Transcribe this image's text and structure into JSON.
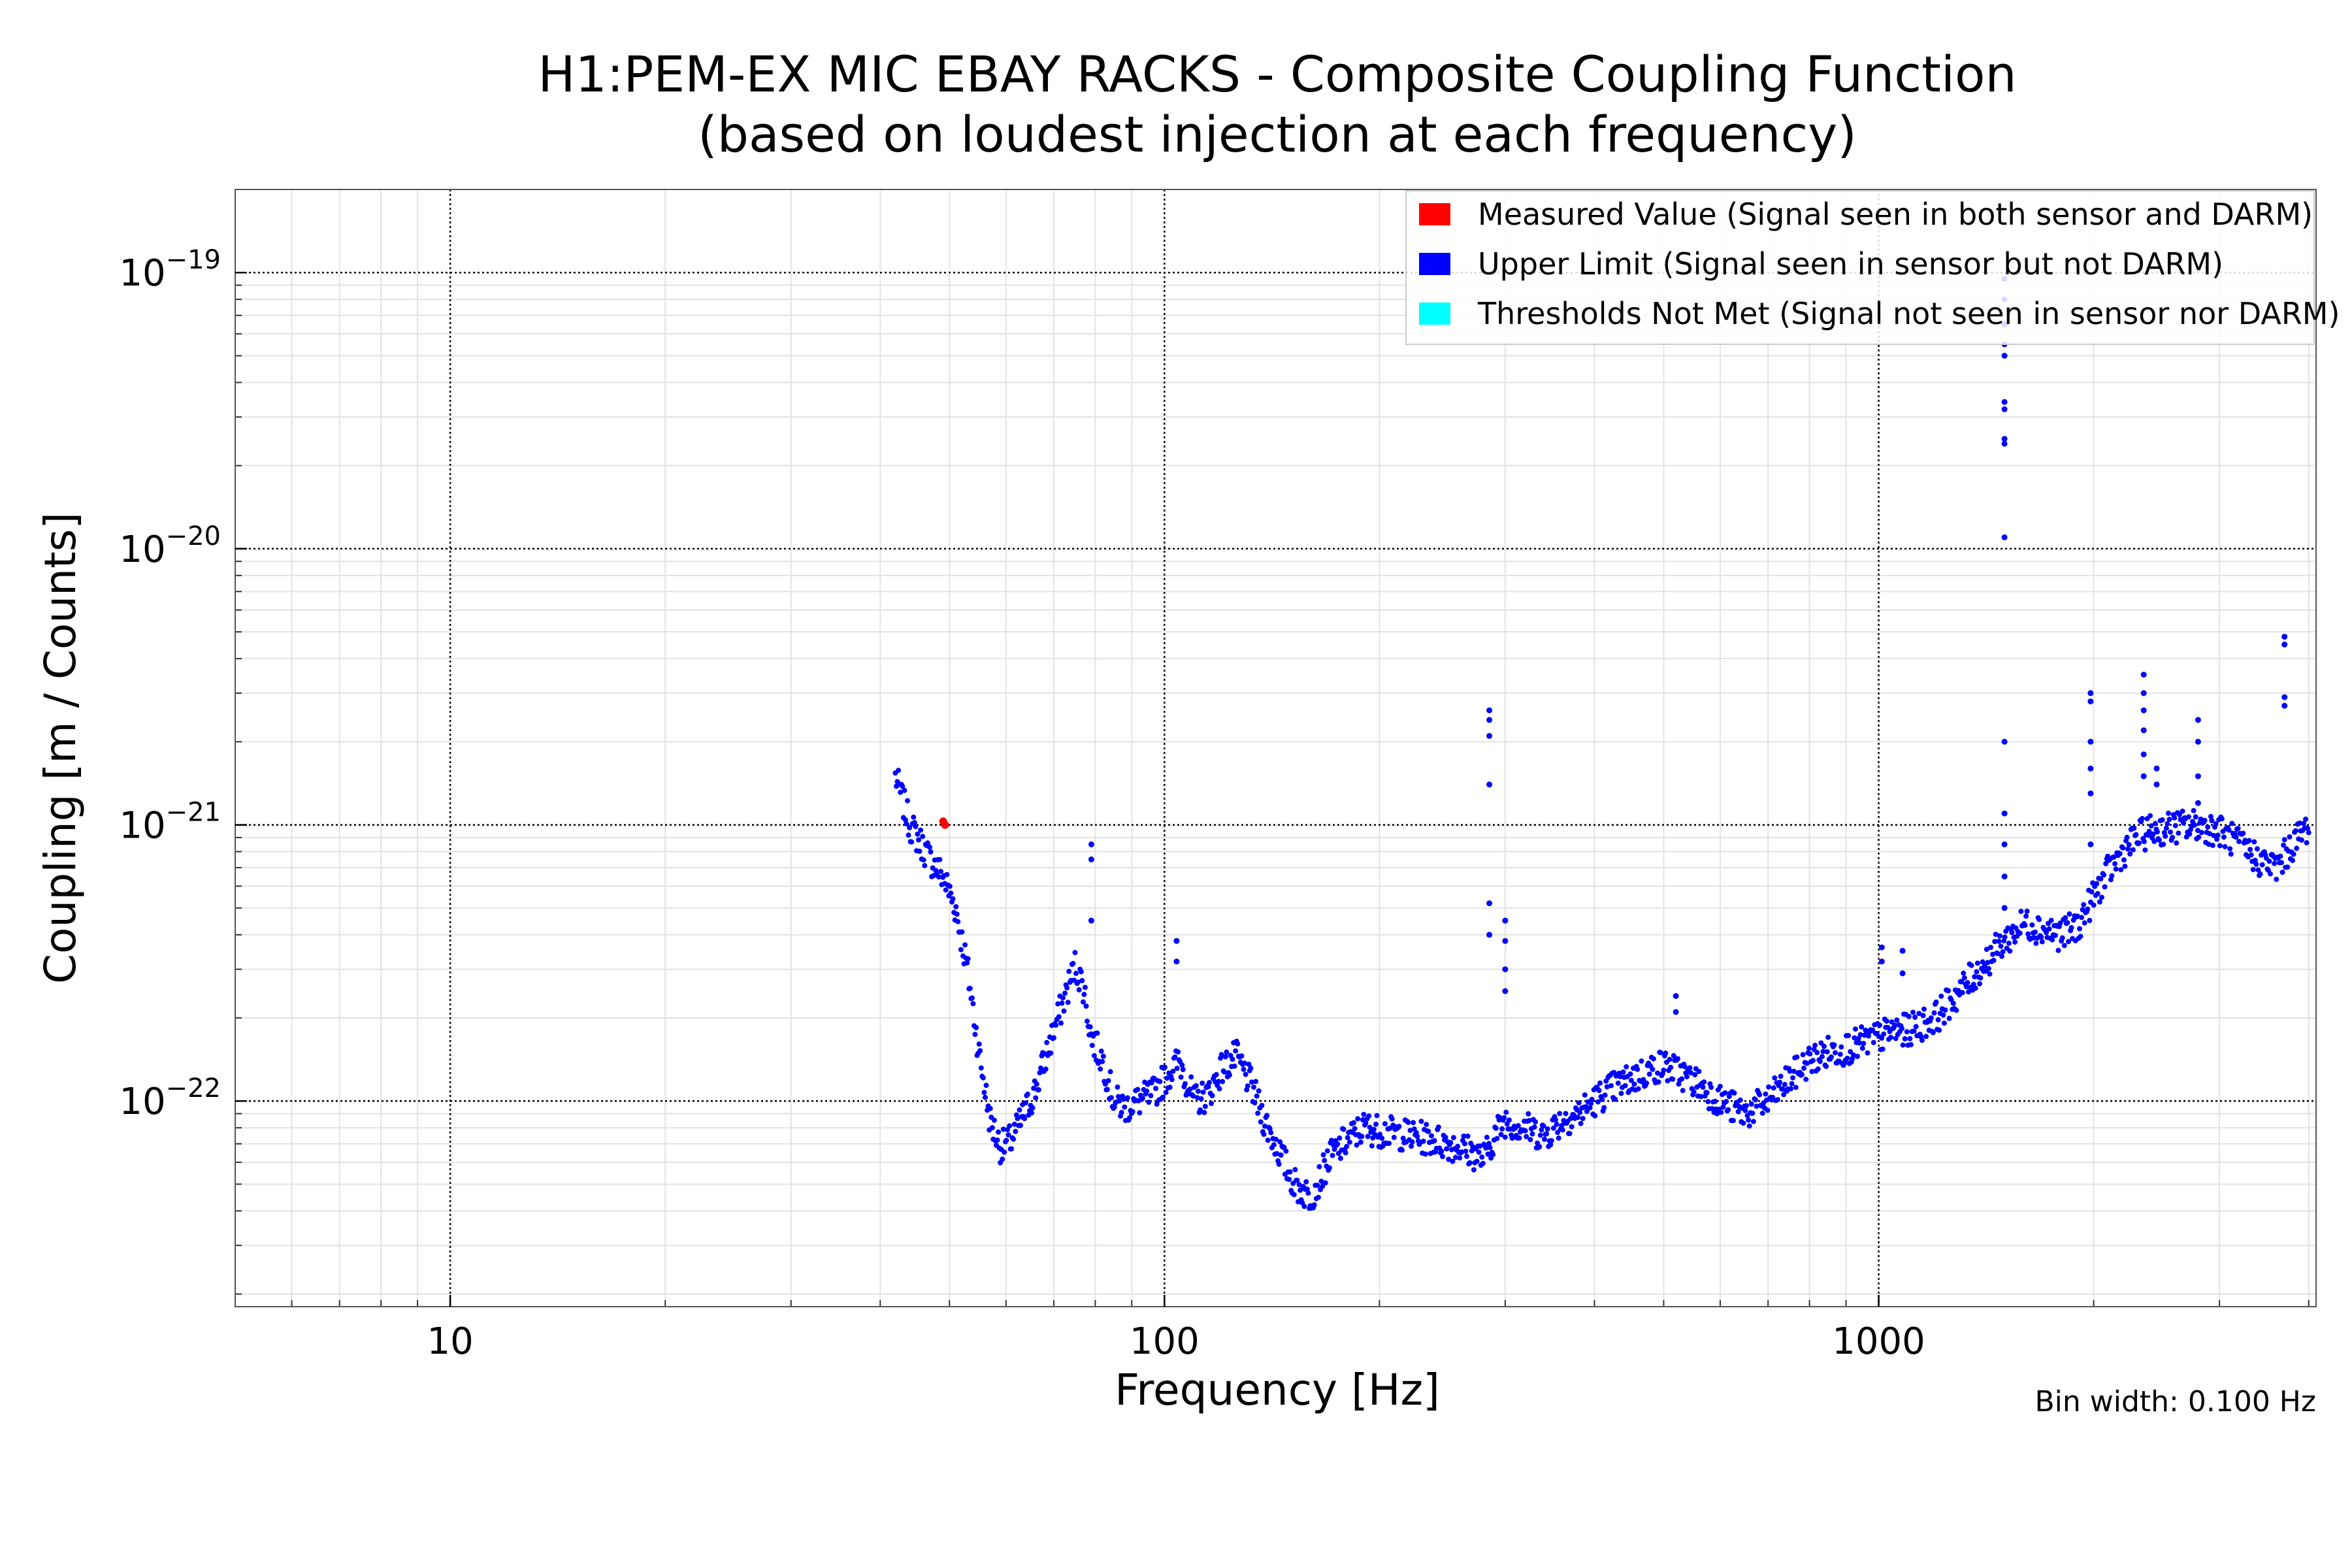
{
  "chart_data": {
    "type": "scatter",
    "title": "H1:PEM-EX MIC EBAY RACKS - Composite Coupling Function",
    "subtitle": "(based on loudest injection at each frequency)",
    "xlabel": "Frequency [Hz]",
    "ylabel": "Coupling [m / Counts]",
    "xscale": "log",
    "yscale": "log",
    "xlim": [
      5.0,
      4096
    ],
    "ylim": [
      1.8e-23,
      2e-19
    ],
    "grid": true,
    "legend_position": "top-right",
    "note": "Bin width: 0.100 Hz",
    "x_ticks": [
      {
        "value": 10,
        "label": "10"
      },
      {
        "value": 100,
        "label": "100"
      },
      {
        "value": 1000,
        "label": "1000"
      }
    ],
    "y_ticks": [
      {
        "value": 1e-22,
        "base": "10",
        "exp": "−22"
      },
      {
        "value": 1e-21,
        "base": "10",
        "exp": "−21"
      },
      {
        "value": 1e-20,
        "base": "10",
        "exp": "−20"
      },
      {
        "value": 1e-19,
        "base": "10",
        "exp": "−19"
      }
    ],
    "series": [
      {
        "name": "Measured Value (Signal seen in both sensor and DARM)",
        "color": "#ff0000",
        "x": [
          49.0,
          49.3
        ],
        "y": [
          1.03e-21,
          1e-21
        ]
      },
      {
        "name": "Upper Limit (Signal seen in sensor but not DARM)",
        "color": "#0000ff",
        "trend_x": [
          42,
          44,
          47,
          49,
          51,
          53,
          55,
          57,
          59,
          61,
          63,
          66,
          70,
          73,
          75,
          77,
          79,
          82,
          85,
          88,
          92,
          96,
          100,
          105,
          110,
          115,
          120,
          126,
          132,
          138,
          145,
          152,
          160,
          165,
          170,
          180,
          190,
          200,
          220,
          240,
          260,
          280,
          290,
          300,
          320,
          340,
          360,
          380,
          400,
          420,
          450,
          480,
          500,
          530,
          560,
          600,
          650,
          700,
          750,
          800,
          850,
          900,
          1000,
          1050,
          1100,
          1200,
          1300,
          1400,
          1500,
          1600,
          1700,
          1800,
          1900,
          2000,
          2100,
          2200,
          2300,
          2400,
          2600,
          2800,
          3000,
          3200,
          3400,
          3600,
          3800,
          4000
        ],
        "trend_y": [
          1.5e-21,
          1e-21,
          7.5e-22,
          6.5e-22,
          5e-22,
          3e-22,
          1.5e-22,
          8.5e-23,
          6.8e-23,
          7.2e-23,
          8.5e-23,
          1.1e-22,
          1.8e-22,
          2.5e-22,
          3.1e-22,
          2.6e-22,
          1.7e-22,
          1.4e-22,
          1e-22,
          9.5e-23,
          1e-22,
          1.05e-22,
          1.2e-22,
          1.4e-22,
          1e-22,
          1.05e-22,
          1.3e-22,
          1.45e-22,
          1.15e-22,
          8.5e-23,
          6.5e-23,
          5e-23,
          4.5e-23,
          5.2e-23,
          6.2e-23,
          7.2e-23,
          8e-23,
          7.8e-23,
          7.5e-23,
          7.2e-23,
          6.8e-23,
          6.2e-23,
          7.5e-23,
          8.5e-23,
          8e-23,
          7.5e-23,
          8.5e-23,
          9e-23,
          1e-22,
          1.1e-22,
          1.2e-22,
          1.3e-22,
          1.35e-22,
          1.25e-22,
          1.15e-22,
          1e-22,
          9e-23,
          1e-22,
          1.2e-22,
          1.4e-22,
          1.5e-22,
          1.55e-22,
          1.7e-22,
          1.8e-22,
          1.8e-22,
          2e-22,
          2.5e-22,
          3.1e-22,
          3.8e-22,
          4.4e-22,
          4.2e-22,
          4e-22,
          4.3e-22,
          5.5e-22,
          6.8e-22,
          8e-22,
          9e-22,
          9.5e-22,
          9.8e-22,
          1e-21,
          9.5e-22,
          8.5e-22,
          7.5e-22,
          7e-22,
          8.5e-22,
          1e-21
        ],
        "peaks": [
          {
            "x": 79,
            "y": [
              8.5e-22,
              7.5e-22,
              4.5e-22
            ]
          },
          {
            "x": 104,
            "y": [
              3.8e-22,
              3.2e-22
            ]
          },
          {
            "x": 285,
            "y": [
              2.6e-21,
              2.4e-21,
              2.1e-21,
              1.4e-21,
              5.2e-22,
              4e-22
            ]
          },
          {
            "x": 300,
            "y": [
              4.5e-22,
              3.8e-22,
              3e-22,
              2.5e-22
            ]
          },
          {
            "x": 520,
            "y": [
              2.4e-22,
              2.1e-22
            ]
          },
          {
            "x": 1010,
            "y": [
              3.6e-22,
              3.2e-22
            ]
          },
          {
            "x": 1080,
            "y": [
              3.5e-22,
              2.9e-22
            ]
          },
          {
            "x": 1500,
            "y": [
              9.5e-20,
              8e-20,
              6.5e-20,
              5.5e-20,
              5e-20,
              3.4e-20,
              3.2e-20,
              2.5e-20,
              2.4e-20,
              1.1e-20,
              2e-21,
              1.1e-21,
              8.5e-22,
              6.5e-22,
              5e-22
            ]
          },
          {
            "x": 1980,
            "y": [
              3e-21,
              2.8e-21,
              2e-21,
              1.6e-21,
              1.3e-21,
              8.5e-22
            ]
          },
          {
            "x": 2350,
            "y": [
              3.5e-21,
              3e-21,
              2.6e-21,
              2.2e-21,
              1.8e-21,
              1.5e-21
            ]
          },
          {
            "x": 2450,
            "y": [
              1.6e-21,
              1.4e-21
            ]
          },
          {
            "x": 2800,
            "y": [
              2.4e-21,
              2e-21,
              1.5e-21,
              1.2e-21
            ]
          },
          {
            "x": 3700,
            "y": [
              4.8e-21,
              4.5e-21,
              2.9e-21,
              2.7e-21
            ]
          }
        ]
      },
      {
        "name": "Thresholds Not Met (Signal not seen in sensor nor DARM)",
        "color": "#00ffff",
        "x": [],
        "y": []
      }
    ]
  }
}
